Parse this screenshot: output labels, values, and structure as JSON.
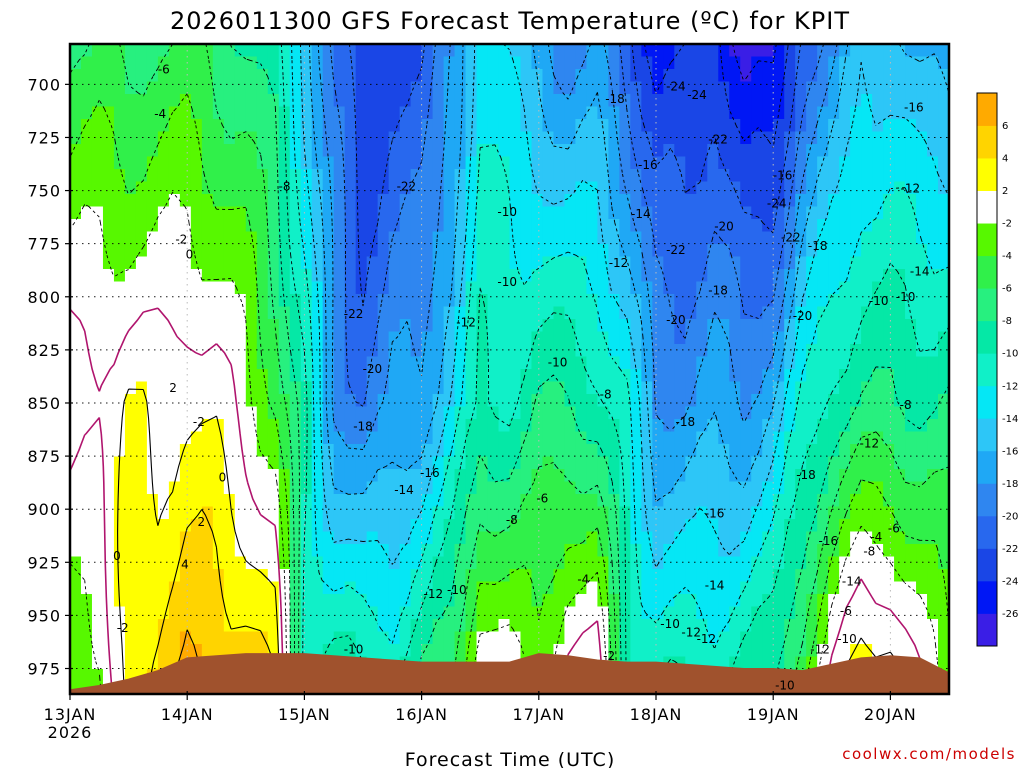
{
  "chart_data": {
    "type": "heatmap",
    "title": "2026011300 GFS Forecast Temperature (ºC) for KPIT",
    "xlabel": "Forecast Time (UTC)",
    "ylabel": "",
    "credit": "coolwx.com/models",
    "x_ticks": [
      "13JAN",
      "14JAN",
      "15JAN",
      "16JAN",
      "17JAN",
      "18JAN",
      "19JAN",
      "20JAN"
    ],
    "x_first_year": "2026",
    "y_ticks": [
      700,
      725,
      750,
      775,
      800,
      825,
      850,
      875,
      900,
      925,
      950,
      975
    ],
    "xlim_days": [
      0,
      7.5
    ],
    "ylim_hpa": [
      681,
      987
    ],
    "y_scale": "linear",
    "grid": true,
    "colorbar": {
      "levels": [
        -28,
        -26,
        -24,
        -22,
        -20,
        -18,
        -16,
        -14,
        -12,
        -10,
        -8,
        -6,
        -4,
        -2,
        2,
        4,
        6,
        8
      ],
      "tick_labels": [
        -26,
        -24,
        -22,
        -20,
        -18,
        -16,
        -14,
        -12,
        -10,
        -8,
        -6,
        -4,
        -2,
        2,
        4,
        6
      ],
      "colors": [
        "#3a1ee6",
        "#0017f5",
        "#1a46e6",
        "#2868ee",
        "#2f86f0",
        "#1fa8f5",
        "#2dc6f7",
        "#05e7f5",
        "#10f0c8",
        "#05e8a6",
        "#27f07f",
        "#30f04a",
        "#57f800",
        "#ffffff",
        "#ffff00",
        "#ffd400",
        "#ffaa00"
      ]
    },
    "time_series": {
      "x_days": [
        0,
        0.25,
        0.5,
        0.75,
        1,
        1.25,
        1.5,
        1.75,
        2,
        2.25,
        2.5,
        2.75,
        3,
        3.25,
        3.5,
        3.75,
        4,
        4.25,
        4.5,
        4.75,
        5,
        5.25,
        5.5,
        5.75,
        6,
        6.25,
        6.5,
        6.75,
        7,
        7.25,
        7.5
      ],
      "temp_700": [
        -5,
        -5,
        -6,
        -5,
        -5,
        -6,
        -7,
        -9,
        -14,
        -20,
        -24,
        -22,
        -22,
        -18,
        -12,
        -14,
        -16,
        -18,
        -17,
        -20,
        -24,
        -24,
        -22,
        -26,
        -26,
        -20,
        -18,
        -14,
        -14,
        -16,
        -16
      ],
      "temp_850": [
        1,
        1,
        2,
        1,
        2,
        1,
        -1,
        -4,
        -10,
        -18,
        -20,
        -18,
        -17,
        -14,
        -10,
        -10,
        -8,
        -8,
        -9,
        -12,
        -18,
        -18,
        -17,
        -18,
        -16,
        -12,
        -9,
        -8,
        -8,
        -8,
        -8
      ],
      "temp_950": [
        -2,
        -2,
        3,
        4,
        5,
        5,
        4,
        2,
        -10,
        -11,
        -12,
        -12,
        -10,
        -8,
        -2,
        -3,
        -4,
        -1,
        -1,
        -10,
        -12,
        -12,
        -12,
        -11,
        -10,
        -6,
        -2,
        1,
        1,
        -2,
        -4
      ]
    },
    "contour_labels": [
      {
        "t": 0.8,
        "p": 693,
        "v": "-6"
      },
      {
        "t": 0.77,
        "p": 714,
        "v": "-4"
      },
      {
        "t": 1.83,
        "p": 748,
        "v": "-8"
      },
      {
        "t": 2.87,
        "p": 748,
        "v": "-22"
      },
      {
        "t": 2.42,
        "p": 808,
        "v": "-22"
      },
      {
        "t": 2.58,
        "p": 834,
        "v": "-20"
      },
      {
        "t": 2.5,
        "p": 861,
        "v": "-18"
      },
      {
        "t": 3.07,
        "p": 883,
        "v": "-16"
      },
      {
        "t": 2.85,
        "p": 891,
        "v": "-14"
      },
      {
        "t": 3.1,
        "p": 940,
        "v": "-12"
      },
      {
        "t": 3.3,
        "p": 938,
        "v": "-10"
      },
      {
        "t": 2.42,
        "p": 966,
        "v": "-10"
      },
      {
        "t": 3.38,
        "p": 812,
        "v": "-12"
      },
      {
        "t": 3.73,
        "p": 760,
        "v": "-10"
      },
      {
        "t": 3.73,
        "p": 793,
        "v": "-10"
      },
      {
        "t": 4.16,
        "p": 831,
        "v": "-10"
      },
      {
        "t": 4.57,
        "p": 846,
        "v": "-8"
      },
      {
        "t": 4.03,
        "p": 895,
        "v": "-6"
      },
      {
        "t": 3.77,
        "p": 905,
        "v": "-8"
      },
      {
        "t": 4.38,
        "p": 933,
        "v": "-4"
      },
      {
        "t": 4.65,
        "p": 707,
        "v": "-18"
      },
      {
        "t": 4.93,
        "p": 738,
        "v": "-16"
      },
      {
        "t": 4.87,
        "p": 761,
        "v": "-14"
      },
      {
        "t": 4.68,
        "p": 784,
        "v": "-12"
      },
      {
        "t": 4.6,
        "p": 969,
        "v": "-2"
      },
      {
        "t": 5.17,
        "p": 701,
        "v": "-24"
      },
      {
        "t": 5.35,
        "p": 705,
        "v": "-24"
      },
      {
        "t": 5.53,
        "p": 726,
        "v": "-22"
      },
      {
        "t": 5.58,
        "p": 767,
        "v": "-20"
      },
      {
        "t": 5.17,
        "p": 778,
        "v": "-22"
      },
      {
        "t": 5.53,
        "p": 797,
        "v": "-18"
      },
      {
        "t": 5.17,
        "p": 811,
        "v": "-20"
      },
      {
        "t": 5.25,
        "p": 859,
        "v": "-18"
      },
      {
        "t": 5.5,
        "p": 902,
        "v": "-16"
      },
      {
        "t": 5.5,
        "p": 936,
        "v": "-14"
      },
      {
        "t": 5.3,
        "p": 958,
        "v": "-12"
      },
      {
        "t": 5.12,
        "p": 954,
        "v": "-10"
      },
      {
        "t": 5.43,
        "p": 961,
        "v": "-12"
      },
      {
        "t": 6.08,
        "p": 743,
        "v": "-16"
      },
      {
        "t": 6.03,
        "p": 756,
        "v": "-24"
      },
      {
        "t": 6.15,
        "p": 772,
        "v": "-22"
      },
      {
        "t": 6.38,
        "p": 776,
        "v": "-18"
      },
      {
        "t": 6.25,
        "p": 809,
        "v": "-20"
      },
      {
        "t": 6.28,
        "p": 884,
        "v": "-18"
      },
      {
        "t": 6.47,
        "p": 915,
        "v": "-16"
      },
      {
        "t": 6.67,
        "p": 934,
        "v": "-14"
      },
      {
        "t": 6.4,
        "p": 966,
        "v": "-12"
      },
      {
        "t": 6.1,
        "p": 983,
        "v": "-10"
      },
      {
        "t": 6.63,
        "p": 961,
        "v": "-10"
      },
      {
        "t": 6.62,
        "p": 948,
        "v": "-6"
      },
      {
        "t": 6.82,
        "p": 869,
        "v": "-12"
      },
      {
        "t": 6.82,
        "p": 920,
        "v": "-8"
      },
      {
        "t": 6.9,
        "p": 802,
        "v": "-10"
      },
      {
        "t": 7.2,
        "p": 711,
        "v": "-16"
      },
      {
        "t": 7.17,
        "p": 749,
        "v": "-12"
      },
      {
        "t": 7.25,
        "p": 788,
        "v": "-14"
      },
      {
        "t": 7.13,
        "p": 800,
        "v": "-10"
      },
      {
        "t": 7.13,
        "p": 851,
        "v": "-8"
      },
      {
        "t": 7.03,
        "p": 909,
        "v": "-6"
      },
      {
        "t": 6.88,
        "p": 913,
        "v": "-4"
      },
      {
        "t": 0.95,
        "p": 773,
        "v": "-2"
      },
      {
        "t": 1.02,
        "p": 780,
        "v": "0"
      },
      {
        "t": 0.88,
        "p": 843,
        "v": "2"
      },
      {
        "t": 1.1,
        "p": 859,
        "v": "-2"
      },
      {
        "t": 1.3,
        "p": 885,
        "v": "0"
      },
      {
        "t": 1.12,
        "p": 906,
        "v": "2"
      },
      {
        "t": 0.4,
        "p": 922,
        "v": "0"
      },
      {
        "t": 0.98,
        "p": 926,
        "v": "4"
      },
      {
        "t": 0.45,
        "p": 956,
        "v": "-2"
      }
    ],
    "terrain_color": "#a0522d"
  }
}
